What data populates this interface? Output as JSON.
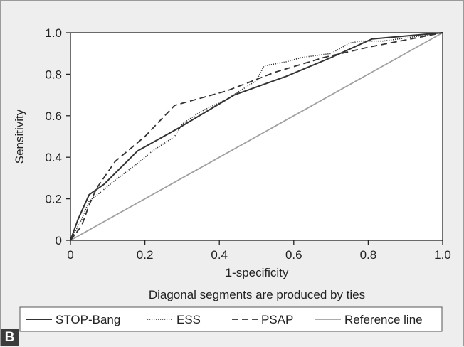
{
  "panel_label": "B",
  "colors": {
    "background": "#eeeeee",
    "plot_area": "#ffffff",
    "axis": "#222222",
    "series_dark": "#333333",
    "reference_line": "#a0a0a0"
  },
  "chart_data": {
    "type": "line",
    "xlabel": "1-specificity",
    "ylabel": "Sensitivity",
    "note": "Diagonal segments are produced by ties",
    "xlim": [
      0,
      1
    ],
    "ylim": [
      0,
      1
    ],
    "xticks": [
      0,
      0.2,
      0.4,
      0.6,
      0.8,
      1.0
    ],
    "xtick_labels": [
      "0",
      "0.2",
      "0.4",
      "0.6",
      "0.8",
      "1.0"
    ],
    "yticks": [
      0,
      0.2,
      0.4,
      0.6,
      0.8,
      1.0
    ],
    "ytick_labels": [
      "0",
      "0.2",
      "0.4",
      "0.6",
      "0.8",
      "1.0"
    ],
    "grid": false,
    "legend_position": "bottom",
    "series": [
      {
        "name": "STOP-Bang",
        "style": "solid",
        "x": [
          0,
          0.02,
          0.05,
          0.09,
          0.18,
          0.29,
          0.44,
          0.58,
          0.7,
          0.81,
          1.0
        ],
        "y": [
          0,
          0.1,
          0.22,
          0.27,
          0.43,
          0.54,
          0.7,
          0.79,
          0.88,
          0.97,
          1.0
        ]
      },
      {
        "name": "ESS",
        "style": "dotted",
        "x": [
          0,
          0.03,
          0.05,
          0.08,
          0.12,
          0.18,
          0.22,
          0.28,
          0.3,
          0.35,
          0.42,
          0.5,
          0.52,
          0.58,
          0.62,
          0.7,
          0.75,
          0.78,
          0.84,
          1.0
        ],
        "y": [
          0,
          0.1,
          0.19,
          0.23,
          0.29,
          0.37,
          0.43,
          0.5,
          0.56,
          0.62,
          0.68,
          0.77,
          0.84,
          0.86,
          0.88,
          0.9,
          0.95,
          0.96,
          0.96,
          1.0
        ]
      },
      {
        "name": "PSAP",
        "style": "dashed",
        "x": [
          0,
          0.03,
          0.05,
          0.07,
          0.12,
          0.2,
          0.28,
          0.42,
          0.55,
          0.68,
          0.8,
          1.0
        ],
        "y": [
          0,
          0.07,
          0.17,
          0.25,
          0.38,
          0.5,
          0.65,
          0.72,
          0.81,
          0.88,
          0.93,
          1.0
        ]
      },
      {
        "name": "Reference line",
        "style": "solid-gray",
        "x": [
          0,
          1
        ],
        "y": [
          0,
          1
        ]
      }
    ]
  }
}
